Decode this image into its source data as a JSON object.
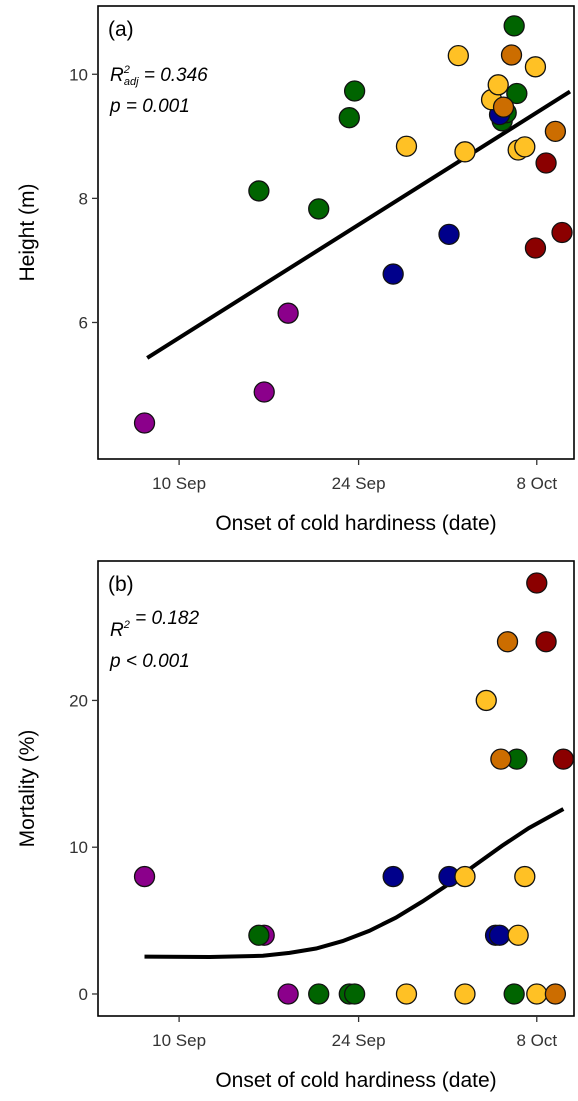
{
  "chart_data": [
    {
      "type": "scatter",
      "panel_label": "(a)",
      "xlabel": "Onset of cold hardiness (date)",
      "ylabel": "Height (m)",
      "x_ticks": [
        "10 Sep",
        "24 Sep",
        "8 Oct"
      ],
      "x_tick_values": [
        -6.3,
        7.2,
        20.6
      ],
      "x_domain": [
        -12.4,
        23.4
      ],
      "y_ticks": [
        "6",
        "8",
        "10"
      ],
      "y_tick_values": [
        6,
        8,
        10
      ],
      "y_domain": [
        3.8,
        11.1
      ],
      "grid": false,
      "stat_line1": {
        "prefix": "R",
        "sup": "2",
        "sub": "adj",
        "suffix": " = 0.346"
      },
      "stat_line2": "p = 0.001",
      "fit": {
        "type": "linear",
        "x": [
          -8.7,
          23.1
        ],
        "y": [
          5.43,
          9.72
        ]
      },
      "points": [
        {
          "x": -8.9,
          "y": 4.38,
          "color": "#8b008b"
        },
        {
          "x": 0.1,
          "y": 4.88,
          "color": "#8b008b"
        },
        {
          "x": 1.9,
          "y": 6.15,
          "color": "#8b008b"
        },
        {
          "x": -0.3,
          "y": 8.12,
          "color": "#006400"
        },
        {
          "x": 4.2,
          "y": 7.83,
          "color": "#006400"
        },
        {
          "x": 6.5,
          "y": 9.3,
          "color": "#006400"
        },
        {
          "x": 6.9,
          "y": 9.73,
          "color": "#006400"
        },
        {
          "x": 18.0,
          "y": 9.25,
          "color": "#006400"
        },
        {
          "x": 18.3,
          "y": 9.38,
          "color": "#006400"
        },
        {
          "x": 19.1,
          "y": 9.69,
          "color": "#006400"
        },
        {
          "x": 18.9,
          "y": 10.78,
          "color": "#006400"
        },
        {
          "x": 9.8,
          "y": 6.78,
          "color": "#00008b"
        },
        {
          "x": 14.0,
          "y": 7.42,
          "color": "#00008b"
        },
        {
          "x": 17.8,
          "y": 9.35,
          "color": "#00008b"
        },
        {
          "x": 10.8,
          "y": 8.84,
          "color": "#ffc125"
        },
        {
          "x": 15.2,
          "y": 8.75,
          "color": "#ffc125"
        },
        {
          "x": 14.7,
          "y": 10.3,
          "color": "#ffc125"
        },
        {
          "x": 17.2,
          "y": 9.59,
          "color": "#ffc125"
        },
        {
          "x": 17.7,
          "y": 9.83,
          "color": "#ffc125"
        },
        {
          "x": 19.2,
          "y": 8.78,
          "color": "#ffc125"
        },
        {
          "x": 19.7,
          "y": 8.83,
          "color": "#ffc125"
        },
        {
          "x": 20.5,
          "y": 10.12,
          "color": "#ffc125"
        },
        {
          "x": 18.1,
          "y": 9.47,
          "color": "#cc6d00"
        },
        {
          "x": 18.7,
          "y": 10.31,
          "color": "#cc6d00"
        },
        {
          "x": 22.0,
          "y": 9.08,
          "color": "#cc6d00"
        },
        {
          "x": 20.5,
          "y": 7.2,
          "color": "#8b0000"
        },
        {
          "x": 21.3,
          "y": 8.57,
          "color": "#8b0000"
        },
        {
          "x": 22.5,
          "y": 7.45,
          "color": "#8b0000"
        }
      ]
    },
    {
      "type": "scatter",
      "panel_label": "(b)",
      "xlabel": "Onset of cold hardiness (date)",
      "ylabel": "Mortality (%)",
      "x_ticks": [
        "10 Sep",
        "24 Sep",
        "8 Oct"
      ],
      "x_tick_values": [
        -6.3,
        7.2,
        20.6
      ],
      "x_domain": [
        -12.4,
        23.4
      ],
      "y_ticks": [
        "0",
        "10",
        "20"
      ],
      "y_tick_values": [
        0,
        10,
        20
      ],
      "y_domain": [
        -1.5,
        29.5
      ],
      "grid": false,
      "stat_line1": {
        "prefix": "R",
        "sup": "2",
        "sub": "",
        "suffix": " = 0.182"
      },
      "stat_line2": "p < 0.001",
      "fit": {
        "type": "curve",
        "x": [
          -8.9,
          -4,
          0,
          2,
          4,
          6,
          8,
          10,
          12,
          14,
          16,
          18,
          20,
          22.6
        ],
        "y": [
          2.55,
          2.52,
          2.6,
          2.8,
          3.1,
          3.6,
          4.3,
          5.2,
          6.3,
          7.5,
          8.8,
          10.1,
          11.3,
          12.6
        ]
      },
      "points": [
        {
          "x": -8.9,
          "y": 8,
          "color": "#8b008b"
        },
        {
          "x": 0.1,
          "y": 4,
          "color": "#8b008b"
        },
        {
          "x": 1.9,
          "y": 0,
          "color": "#8b008b"
        },
        {
          "x": -0.3,
          "y": 4,
          "color": "#006400"
        },
        {
          "x": 4.2,
          "y": 0,
          "color": "#006400"
        },
        {
          "x": 6.5,
          "y": 0,
          "color": "#006400"
        },
        {
          "x": 6.9,
          "y": 0,
          "color": "#006400"
        },
        {
          "x": 18.9,
          "y": 0,
          "color": "#006400"
        },
        {
          "x": 19.1,
          "y": 16,
          "color": "#006400"
        },
        {
          "x": 9.8,
          "y": 8,
          "color": "#00008b"
        },
        {
          "x": 14.0,
          "y": 8,
          "color": "#00008b"
        },
        {
          "x": 17.5,
          "y": 4,
          "color": "#00008b"
        },
        {
          "x": 17.8,
          "y": 4,
          "color": "#00008b"
        },
        {
          "x": 10.8,
          "y": 0,
          "color": "#ffc125"
        },
        {
          "x": 15.2,
          "y": 8,
          "color": "#ffc125"
        },
        {
          "x": 15.2,
          "y": 0,
          "color": "#ffc125"
        },
        {
          "x": 16.8,
          "y": 20,
          "color": "#ffc125"
        },
        {
          "x": 19.2,
          "y": 4,
          "color": "#ffc125"
        },
        {
          "x": 19.7,
          "y": 8,
          "color": "#ffc125"
        },
        {
          "x": 20.6,
          "y": 0,
          "color": "#ffc125"
        },
        {
          "x": 17.9,
          "y": 16,
          "color": "#cc6d00"
        },
        {
          "x": 18.4,
          "y": 24,
          "color": "#cc6d00"
        },
        {
          "x": 22.0,
          "y": 0,
          "color": "#cc6d00"
        },
        {
          "x": 20.6,
          "y": 28,
          "color": "#8b0000"
        },
        {
          "x": 21.3,
          "y": 24,
          "color": "#8b0000"
        },
        {
          "x": 22.6,
          "y": 16,
          "color": "#8b0000"
        }
      ]
    }
  ]
}
